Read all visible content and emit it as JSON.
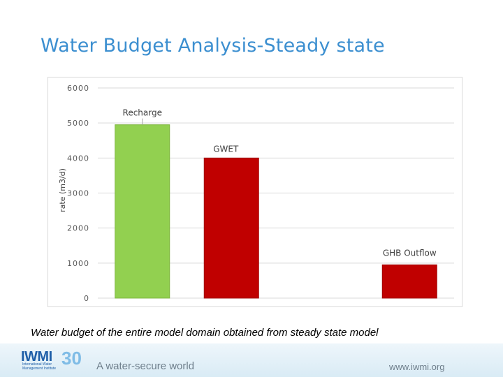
{
  "slide": {
    "title": "Water Budget Analysis-Steady state",
    "caption": "Water budget of the entire model domain obtained from steady state model"
  },
  "footer": {
    "logo_text": "IWMI",
    "logo_subtext": "International Water Management Institute",
    "logo_number": "30",
    "tagline": "A water-secure world",
    "website": "www.iwmi.org"
  },
  "chart_data": {
    "type": "bar",
    "ylabel": "rate (m3/d)",
    "xlabel": "",
    "ylim": [
      0,
      6000
    ],
    "yticks": [
      0,
      1000,
      2000,
      3000,
      4000,
      5000,
      6000
    ],
    "grid": true,
    "categories": [
      "Recharge",
      "GWET",
      "",
      "GHB  Outflow"
    ],
    "values": [
      4950,
      4000,
      null,
      950
    ],
    "colors": [
      "#92d050",
      "#c00000",
      "#ffffff",
      "#c00000"
    ]
  }
}
